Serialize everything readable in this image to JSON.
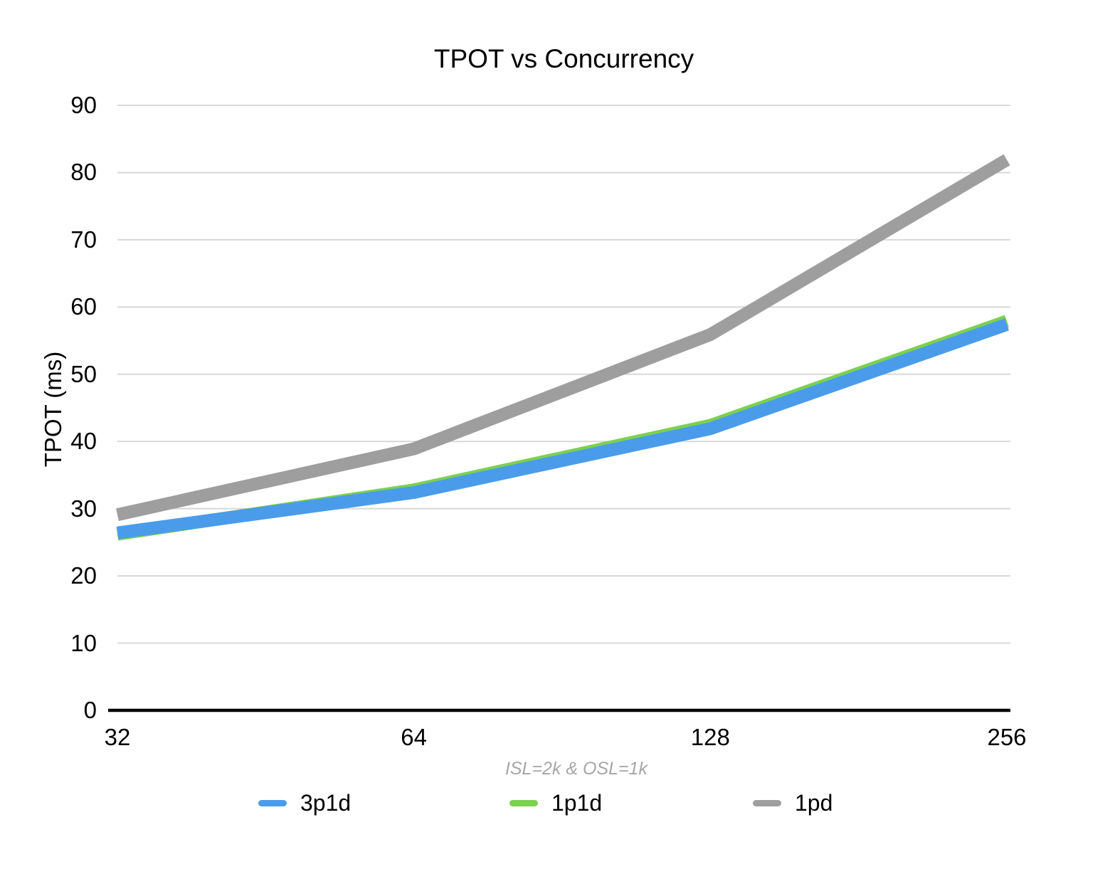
{
  "title": "TPOT vs Concurrency",
  "footnote": "ISL=2k & OSL=1k",
  "colors": {
    "grid": "#D8D8D8",
    "axis": "#000000",
    "footnote_text": "#A7A7A7",
    "title_text": "#000000",
    "blue_series": "#4A9CEB",
    "green_series": "#7CD14E",
    "gray_series": "#9E9E9E"
  },
  "chart_data": {
    "type": "line",
    "title": "TPOT vs Concurrency",
    "ylabel": "TPOT (ms)",
    "xlabel": "",
    "footnote": "ISL=2k & OSL=1k",
    "categories": [
      "32",
      "64",
      "128",
      "256"
    ],
    "series": [
      {
        "name": "3p1d",
        "color": "#4A9CEB",
        "values": [
          26.4,
          32.4,
          41.9,
          57.4
        ]
      },
      {
        "name": "1p1d",
        "color": "#7CD14E",
        "values": [
          26.2,
          32.8,
          42.4,
          57.9
        ]
      },
      {
        "name": "1pd",
        "color": "#9E9E9E",
        "values": [
          29.1,
          38.9,
          55.9,
          81.9
        ]
      }
    ],
    "draw_order": [
      "1p1d",
      "3p1d",
      "1pd"
    ],
    "ylim": [
      0,
      90
    ],
    "y_tick_step": 10,
    "y_ticks": [
      0,
      10,
      20,
      30,
      40,
      50,
      60,
      70,
      80,
      90
    ],
    "grid": true,
    "legend_position": "bottom"
  }
}
